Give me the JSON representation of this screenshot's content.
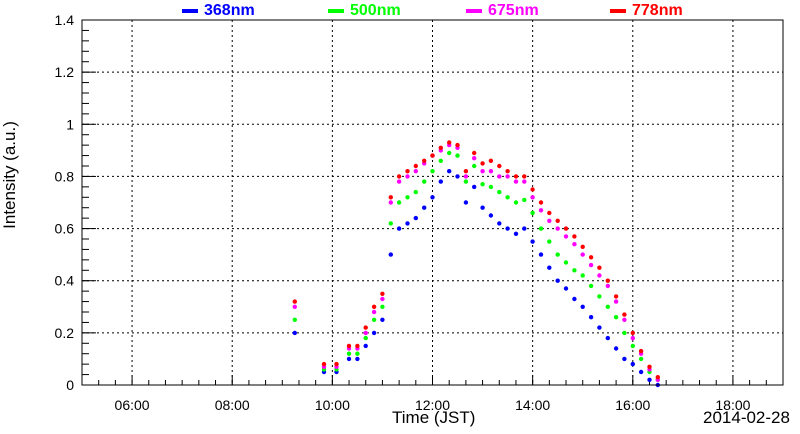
{
  "chart_data": {
    "type": "scatter",
    "title": "",
    "xlabel": "Time (JST)",
    "ylabel": "Intensity (a.u.)",
    "date_label": "2014-02-28",
    "xlim": [
      "05:00",
      "19:00"
    ],
    "ylim": [
      0,
      1.4
    ],
    "x_ticks": [
      "06:00",
      "08:00",
      "10:00",
      "12:00",
      "14:00",
      "16:00",
      "18:00"
    ],
    "y_ticks": [
      "0",
      "0.2",
      "0.4",
      "0.6",
      "0.8",
      "1",
      "1.2",
      "1.4"
    ],
    "grid": true,
    "legend_position": "top",
    "series": [
      {
        "name": "368nm",
        "color": "#0000ff",
        "x": [
          "09:15",
          "09:50",
          "10:05",
          "10:20",
          "10:30",
          "10:40",
          "10:50",
          "11:00",
          "11:10",
          "11:20",
          "11:30",
          "11:40",
          "11:50",
          "12:00",
          "12:10",
          "12:20",
          "12:30",
          "12:40",
          "12:50",
          "13:00",
          "13:10",
          "13:20",
          "13:30",
          "13:40",
          "13:50",
          "14:00",
          "14:10",
          "14:20",
          "14:30",
          "14:40",
          "14:50",
          "15:00",
          "15:10",
          "15:20",
          "15:30",
          "15:40",
          "15:50",
          "16:00",
          "16:10",
          "16:20",
          "16:30"
        ],
        "values": [
          0.2,
          0.05,
          0.05,
          0.1,
          0.1,
          0.15,
          0.2,
          0.25,
          0.5,
          0.6,
          0.62,
          0.64,
          0.68,
          0.72,
          0.78,
          0.82,
          0.8,
          0.7,
          0.76,
          0.68,
          0.65,
          0.62,
          0.6,
          0.58,
          0.6,
          0.55,
          0.5,
          0.45,
          0.4,
          0.37,
          0.33,
          0.3,
          0.26,
          0.22,
          0.18,
          0.14,
          0.1,
          0.08,
          0.05,
          0.02,
          0.0
        ]
      },
      {
        "name": "500nm",
        "color": "#00ff00",
        "x": [
          "09:15",
          "09:50",
          "10:05",
          "10:20",
          "10:30",
          "10:40",
          "10:50",
          "11:00",
          "11:10",
          "11:20",
          "11:30",
          "11:40",
          "11:50",
          "12:00",
          "12:10",
          "12:20",
          "12:30",
          "12:40",
          "12:50",
          "13:00",
          "13:10",
          "13:20",
          "13:30",
          "13:40",
          "13:50",
          "14:00",
          "14:10",
          "14:20",
          "14:30",
          "14:40",
          "14:50",
          "15:00",
          "15:10",
          "15:20",
          "15:30",
          "15:40",
          "15:50",
          "16:00",
          "16:10",
          "16:20",
          "16:30"
        ],
        "values": [
          0.25,
          0.06,
          0.06,
          0.12,
          0.12,
          0.18,
          0.25,
          0.3,
          0.62,
          0.7,
          0.72,
          0.74,
          0.78,
          0.82,
          0.86,
          0.89,
          0.88,
          0.78,
          0.84,
          0.77,
          0.76,
          0.74,
          0.72,
          0.7,
          0.71,
          0.66,
          0.6,
          0.55,
          0.5,
          0.47,
          0.44,
          0.42,
          0.38,
          0.34,
          0.3,
          0.26,
          0.2,
          0.15,
          0.1,
          0.05,
          0.02
        ]
      },
      {
        "name": "675nm",
        "color": "#ff00ff",
        "x": [
          "09:15",
          "09:50",
          "10:05",
          "10:20",
          "10:30",
          "10:40",
          "10:50",
          "11:00",
          "11:10",
          "11:20",
          "11:30",
          "11:40",
          "11:50",
          "12:00",
          "12:10",
          "12:20",
          "12:30",
          "12:40",
          "12:50",
          "13:00",
          "13:10",
          "13:20",
          "13:30",
          "13:40",
          "13:50",
          "14:00",
          "14:10",
          "14:20",
          "14:30",
          "14:40",
          "14:50",
          "15:00",
          "15:10",
          "15:20",
          "15:30",
          "15:40",
          "15:50",
          "16:00",
          "16:10",
          "16:20",
          "16:30"
        ],
        "values": [
          0.3,
          0.07,
          0.07,
          0.14,
          0.14,
          0.2,
          0.28,
          0.33,
          0.7,
          0.78,
          0.8,
          0.82,
          0.85,
          0.88,
          0.9,
          0.92,
          0.91,
          0.8,
          0.87,
          0.82,
          0.82,
          0.8,
          0.8,
          0.78,
          0.78,
          0.72,
          0.67,
          0.63,
          0.6,
          0.57,
          0.54,
          0.5,
          0.46,
          0.42,
          0.38,
          0.32,
          0.25,
          0.18,
          0.12,
          0.06,
          0.02
        ]
      },
      {
        "name": "778nm",
        "color": "#ff0000",
        "x": [
          "09:15",
          "09:50",
          "10:05",
          "10:20",
          "10:30",
          "10:40",
          "10:50",
          "11:00",
          "11:10",
          "11:20",
          "11:30",
          "11:40",
          "11:50",
          "12:00",
          "12:10",
          "12:20",
          "12:30",
          "12:40",
          "12:50",
          "13:00",
          "13:10",
          "13:20",
          "13:30",
          "13:40",
          "13:50",
          "14:00",
          "14:10",
          "14:20",
          "14:30",
          "14:40",
          "14:50",
          "15:00",
          "15:10",
          "15:20",
          "15:30",
          "15:40",
          "15:50",
          "16:00",
          "16:10",
          "16:20",
          "16:30"
        ],
        "values": [
          0.32,
          0.08,
          0.08,
          0.15,
          0.15,
          0.22,
          0.3,
          0.35,
          0.72,
          0.8,
          0.82,
          0.84,
          0.86,
          0.88,
          0.91,
          0.93,
          0.92,
          0.82,
          0.89,
          0.85,
          0.86,
          0.84,
          0.82,
          0.8,
          0.8,
          0.75,
          0.7,
          0.66,
          0.63,
          0.6,
          0.57,
          0.53,
          0.49,
          0.45,
          0.4,
          0.34,
          0.27,
          0.2,
          0.13,
          0.07,
          0.03
        ]
      }
    ]
  }
}
